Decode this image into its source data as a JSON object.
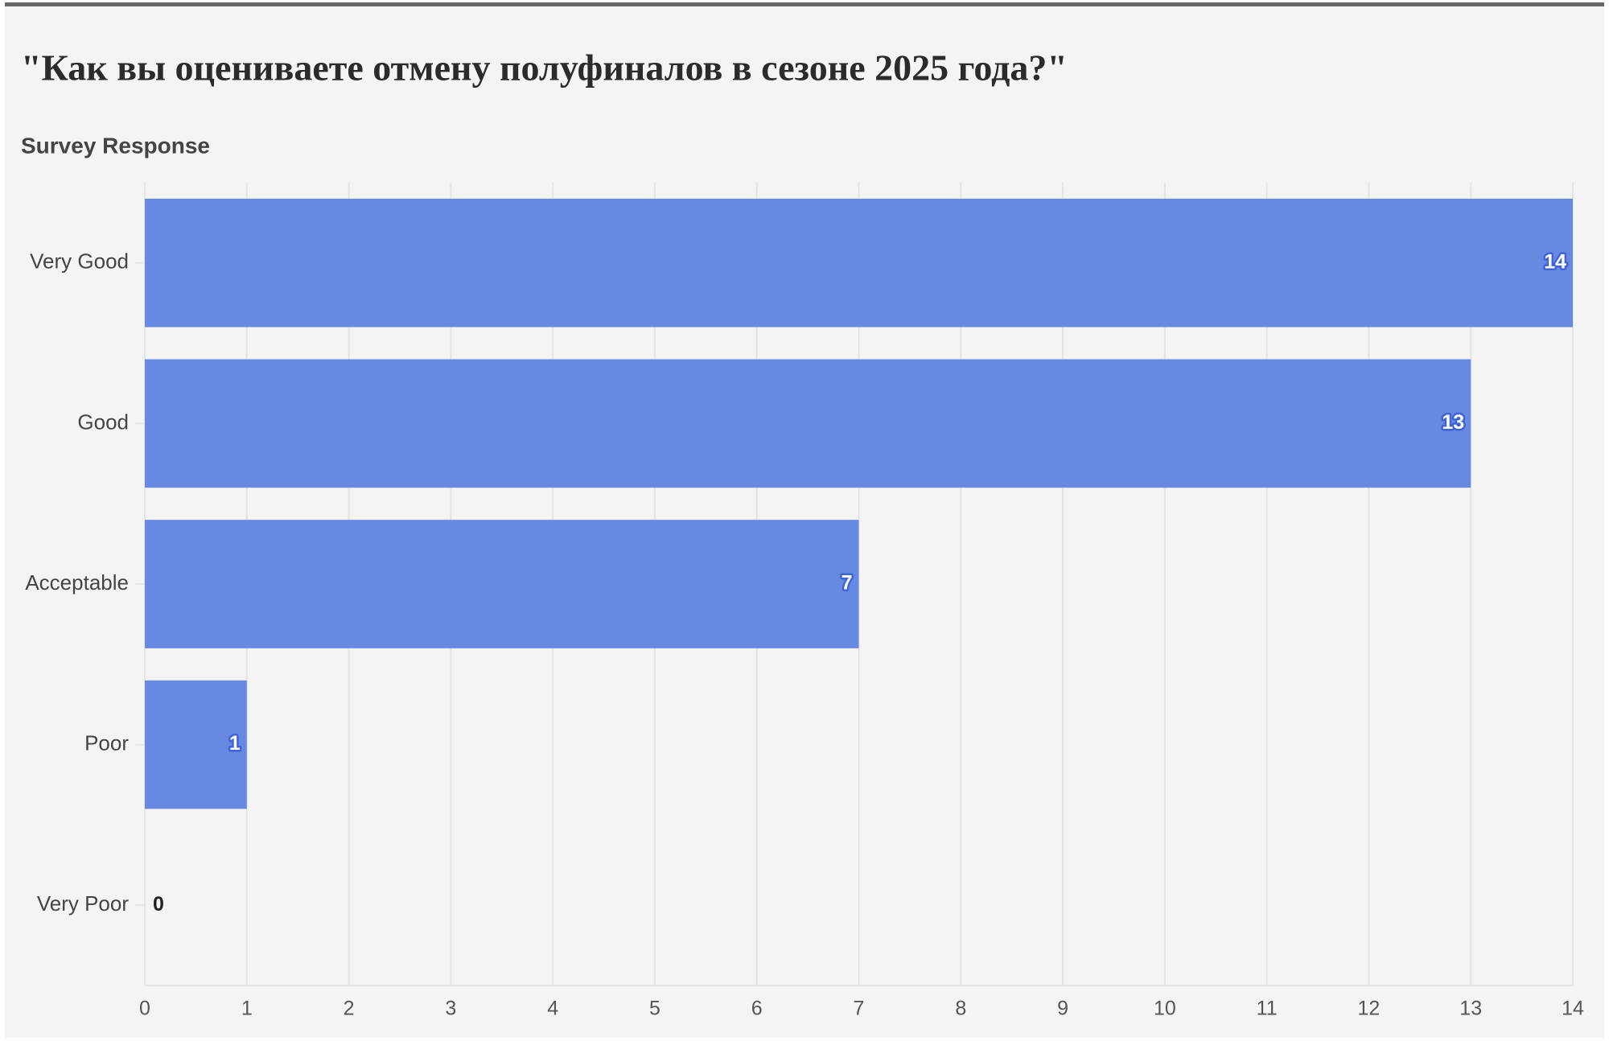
{
  "chart_data": {
    "type": "bar",
    "orientation": "horizontal",
    "title": "\"Как вы оцениваете отмену полуфиналов в сезоне 2025 года?\"",
    "y_label": "Survey Response",
    "categories": [
      "Very Good",
      "Good",
      "Acceptable",
      "Poor",
      "Very Poor"
    ],
    "values": [
      14,
      13,
      7,
      1,
      0
    ],
    "color": "#6889e2",
    "xlim": [
      0,
      14
    ],
    "xticks": [
      0,
      1,
      2,
      3,
      4,
      5,
      6,
      7,
      8,
      9,
      10,
      11,
      12,
      13,
      14
    ],
    "grid": true
  }
}
